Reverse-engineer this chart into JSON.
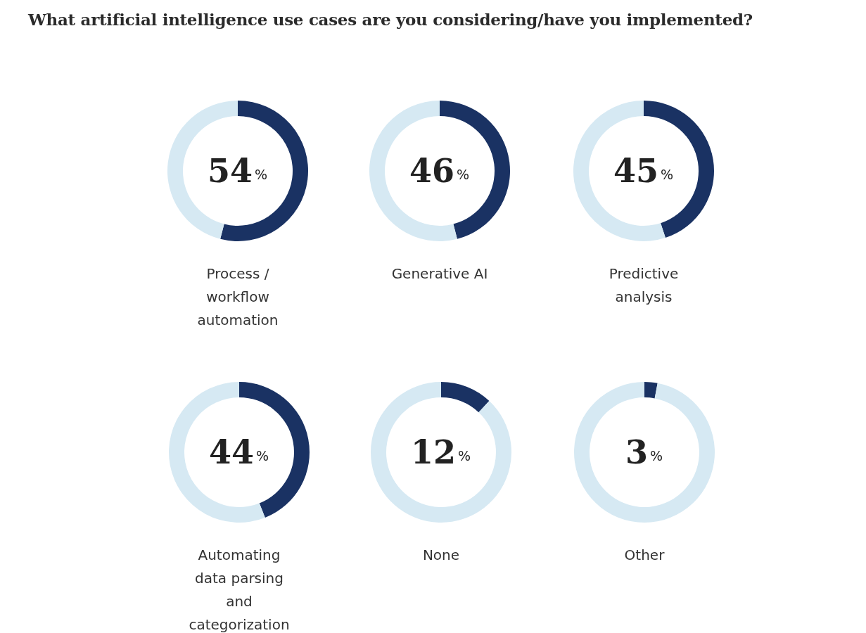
{
  "chart_data": [
    {
      "type": "other",
      "title": "What artificial intelligence use cases are you considering/have you implemented?"
    },
    {
      "type": "donut",
      "title": "Process / workflow automation",
      "categories": [
        null,
        null
      ],
      "values": [
        54,
        46
      ],
      "colors": [
        "#1a3263",
        "#d6e9f3"
      ],
      "annotations": [
        "54%"
      ]
    },
    {
      "type": "donut",
      "title": "Generative AI",
      "categories": [
        null,
        null
      ],
      "values": [
        46,
        54
      ],
      "colors": [
        "#1a3263",
        "#d6e9f3"
      ],
      "annotations": [
        "46%"
      ]
    },
    {
      "type": "donut",
      "title": "Predictive analysis",
      "categories": [
        null,
        null
      ],
      "values": [
        45,
        55
      ],
      "colors": [
        "#1a3263",
        "#d6e9f3"
      ],
      "annotations": [
        "45%"
      ]
    },
    {
      "type": "donut",
      "title": "Automating data parsing and categorization",
      "categories": [
        null,
        null
      ],
      "values": [
        44,
        56
      ],
      "colors": [
        "#1a3263",
        "#d6e9f3"
      ],
      "annotations": [
        "44%"
      ]
    },
    {
      "type": "donut",
      "title": "None",
      "categories": [
        null,
        null
      ],
      "values": [
        12,
        88
      ],
      "colors": [
        "#1a3263",
        "#d6e9f3"
      ],
      "annotations": [
        "12%"
      ]
    },
    {
      "type": "donut",
      "title": "Other",
      "categories": [
        null,
        null
      ],
      "values": [
        3,
        97
      ],
      "colors": [
        "#1a3263",
        "#d6e9f3"
      ],
      "annotations": [
        "3%"
      ]
    }
  ]
}
